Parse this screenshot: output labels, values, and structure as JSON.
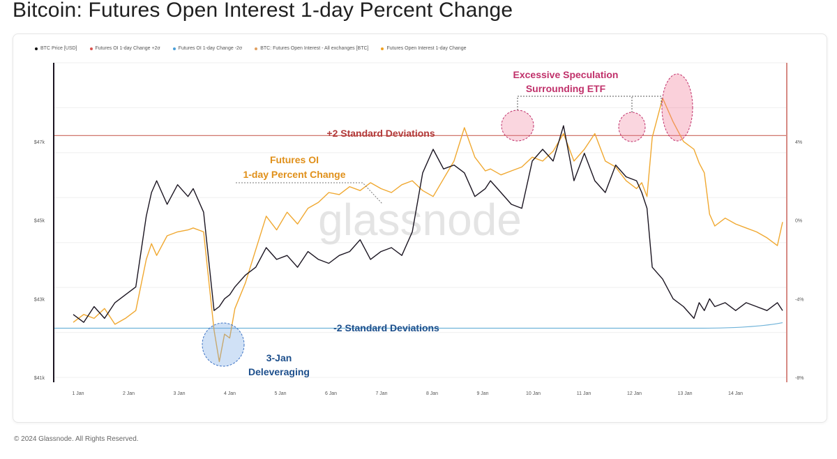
{
  "title": "Bitcoin: Futures Open Interest 1-day Percent Change",
  "footer": "© 2024 Glassnode. All Rights Reserved.",
  "watermark": "glassnode",
  "legend": [
    {
      "label": "BTC Price [USD]",
      "color": "#111111"
    },
    {
      "label": "Futures OI 1-day Change +2σ",
      "color": "#d9534f"
    },
    {
      "label": "Futures OI 1-day Change -2σ",
      "color": "#4a9fd8"
    },
    {
      "label": "BTC: Futures Open Interest - All exchanges [BTC]",
      "color": "#e0a060"
    },
    {
      "label": "Futures Open Interest 1-day Change",
      "color": "#f0a020"
    }
  ],
  "annotations": {
    "upper_band": "+2 Standard Deviations",
    "lower_band": "-2 Standard Deviations",
    "oi_label_1": "Futures OI",
    "oi_label_2": "1-day Percent Change",
    "spec_1": "Excessive Speculation",
    "spec_2": "Surrounding ETF",
    "delev_1": "3-Jan",
    "delev_2": "Deleveraging"
  },
  "colors": {
    "price": "#1a1420",
    "oi": "#f0a830",
    "upper_band": "#c9645a",
    "lower_band": "#6fb3d9",
    "spec_text": "#c0306a",
    "delev_text": "#1d4f8c"
  },
  "chart_data": {
    "type": "line",
    "title": "Bitcoin: Futures Open Interest 1-day Percent Change",
    "x_tick_labels": [
      "1 Jan",
      "2 Jan",
      "3 Jan",
      "4 Jan",
      "5 Jan",
      "6 Jan",
      "7 Jan",
      "8 Jan",
      "9 Jan",
      "10 Jan",
      "11 Jan",
      "12 Jan",
      "13 Jan",
      "14 Jan"
    ],
    "y_left_tick_labels": [
      "$47k",
      "$45k",
      "$43k",
      "$41k"
    ],
    "y_right_tick_labels": [
      "4%",
      "0%",
      "-4%",
      "-8%"
    ],
    "y_left_range": [
      41000,
      49000
    ],
    "y_right_range": [
      -8,
      8
    ],
    "upper_band_pct": 4.3,
    "lower_band_pct": -5.5,
    "grid": true,
    "legend_position": "top-left",
    "series": [
      {
        "name": "BTC Price [USD]",
        "axis": "left",
        "x": [
          0,
          0.2,
          0.4,
          0.6,
          0.8,
          1.0,
          1.2,
          1.4,
          1.5,
          1.6,
          1.8,
          2.0,
          2.2,
          2.3,
          2.5,
          2.7,
          2.8,
          2.9,
          3.0,
          3.1,
          3.3,
          3.5,
          3.7,
          3.9,
          4.1,
          4.3,
          4.5,
          4.7,
          4.9,
          5.1,
          5.3,
          5.5,
          5.7,
          5.9,
          6.1,
          6.3,
          6.5,
          6.7,
          6.9,
          7.1,
          7.3,
          7.5,
          7.7,
          7.9,
          8.0,
          8.2,
          8.4,
          8.6,
          8.8,
          9.0,
          9.2,
          9.4,
          9.6,
          9.8,
          10.0,
          10.2,
          10.4,
          10.6,
          10.8,
          10.9,
          11.0,
          11.1,
          11.3,
          11.5,
          11.7,
          11.9,
          12.0,
          12.1,
          12.2,
          12.3,
          12.5,
          12.7,
          12.9,
          13.1,
          13.3,
          13.5,
          13.6
        ],
        "values": [
          42600,
          42400,
          42800,
          42500,
          42900,
          43100,
          43300,
          45100,
          45700,
          46000,
          45400,
          45900,
          45600,
          45800,
          45200,
          42700,
          42800,
          43000,
          43100,
          43300,
          43600,
          43800,
          44300,
          44000,
          44100,
          43800,
          44200,
          44000,
          43900,
          44100,
          44200,
          44500,
          44000,
          44200,
          44300,
          44100,
          44700,
          46200,
          46800,
          46300,
          46400,
          46200,
          45600,
          45800,
          46000,
          45700,
          45400,
          45300,
          46500,
          46800,
          46500,
          47400,
          46000,
          46700,
          46000,
          45700,
          46400,
          46100,
          46000,
          45700,
          45300,
          43800,
          43500,
          43000,
          42800,
          42500,
          42900,
          42700,
          43000,
          42800,
          42900,
          42700,
          42900,
          42800,
          42700,
          42900,
          42700
        ]
      },
      {
        "name": "Futures Open Interest 1-day Change",
        "axis": "right",
        "x": [
          0,
          0.2,
          0.4,
          0.6,
          0.8,
          1.0,
          1.2,
          1.4,
          1.5,
          1.6,
          1.8,
          2.0,
          2.2,
          2.3,
          2.5,
          2.7,
          2.8,
          2.9,
          3.0,
          3.1,
          3.3,
          3.5,
          3.7,
          3.9,
          4.1,
          4.3,
          4.5,
          4.7,
          4.9,
          5.1,
          5.3,
          5.5,
          5.7,
          5.9,
          6.1,
          6.3,
          6.5,
          6.7,
          6.9,
          7.1,
          7.3,
          7.5,
          7.7,
          7.9,
          8.0,
          8.2,
          8.4,
          8.6,
          8.8,
          9.0,
          9.2,
          9.4,
          9.6,
          9.8,
          10.0,
          10.2,
          10.4,
          10.6,
          10.8,
          10.9,
          11.0,
          11.1,
          11.3,
          11.5,
          11.7,
          11.9,
          12.0,
          12.1,
          12.2,
          12.3,
          12.5,
          12.7,
          12.9,
          13.1,
          13.3,
          13.5,
          13.6
        ],
        "values": [
          -5.2,
          -4.8,
          -5.0,
          -4.5,
          -5.3,
          -5.0,
          -4.6,
          -2.0,
          -1.2,
          -1.8,
          -0.8,
          -0.6,
          -0.5,
          -0.4,
          -0.6,
          -5.6,
          -7.2,
          -5.8,
          -6.0,
          -4.5,
          -3.2,
          -1.5,
          0.2,
          -0.5,
          0.4,
          -0.2,
          0.6,
          0.9,
          1.4,
          1.3,
          1.7,
          1.5,
          1.9,
          1.6,
          1.4,
          1.8,
          2.0,
          1.5,
          1.2,
          2.1,
          3.0,
          4.7,
          3.2,
          2.5,
          2.6,
          2.3,
          2.5,
          2.7,
          3.2,
          3.0,
          3.5,
          4.4,
          3.0,
          3.6,
          4.4,
          3.0,
          2.7,
          2.0,
          1.6,
          1.9,
          1.2,
          4.2,
          6.2,
          5.0,
          4.0,
          3.6,
          2.9,
          2.4,
          0.3,
          -0.3,
          0.1,
          -0.2,
          -0.4,
          -0.6,
          -0.9,
          -1.3,
          -0.1
        ]
      }
    ]
  }
}
